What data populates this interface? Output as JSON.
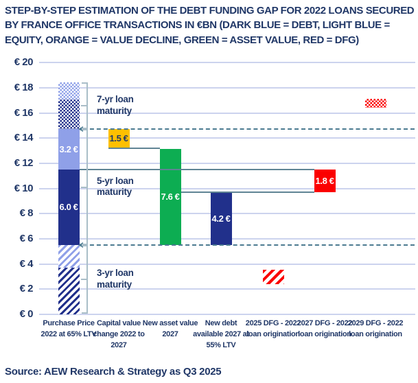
{
  "title": {
    "line1": "STEP-BY-STEP ESTIMATION OF THE DEBT FUNDING GAP FOR 2022 LOANS SECURED",
    "line2": "BY FRANCE OFFICE TRANSACTIONS IN €BN (DARK BLUE = DEBT, LIGHT BLUE =",
    "line3": "EQUITY, ORANGE = VALUE DECLINE, GREEN = ASSET VALUE, RED = DFG)"
  },
  "source": "Source: AEW Research & Strategy as Q3 2025",
  "colors": {
    "text": "#203767",
    "navy": "#21308B",
    "lightblue": "#8FA0E8",
    "green": "#0DAD52",
    "red": "#FB0000",
    "orange": "#FFC000",
    "gridline": "#CCD3EE",
    "dashed_guide": "#4A7A90",
    "connector": "#5F8494",
    "bracket": "#A9BEC8"
  },
  "chart_data": {
    "type": "bar",
    "subtype": "stacked-waterfall",
    "units": "€BN",
    "grid": true,
    "axis": {
      "min": 0,
      "max": 20,
      "step": 2,
      "tick_prefix": "€ "
    },
    "yticks": [
      "€ 0",
      "€ 2",
      "€ 4",
      "€ 6",
      "€ 8",
      "€ 10",
      "€ 12",
      "€ 14",
      "€ 16",
      "€ 18",
      "€ 20"
    ],
    "categories": [
      "Purchase Price 2022 at 65% LTV",
      "Capital value change 2022 to 2027",
      "New asset value 2027",
      "New debt available 2027 at 55% LTV",
      "2025 DFG - 2022 loan origination",
      "2027 DFG - 2022 loan origination",
      "2029 DFG - 2022 loan origination"
    ],
    "bars": [
      {
        "cat": 0,
        "segments": [
          {
            "from": 0,
            "to": 3.7,
            "fill": "navy-hatch"
          },
          {
            "from": 3.7,
            "to": 5.5,
            "fill": "lightblue-hatch"
          },
          {
            "from": 5.5,
            "to": 11.5,
            "fill": "navy",
            "label": "6.0 €"
          },
          {
            "from": 11.5,
            "to": 14.7,
            "fill": "lightblue",
            "label": "3.2 €"
          },
          {
            "from": 14.7,
            "to": 17.05,
            "fill": "navy-dots"
          },
          {
            "from": 17.05,
            "to": 18.45,
            "fill": "lightblue-dots"
          }
        ]
      },
      {
        "cat": 1,
        "segments": [
          {
            "from": 13.2,
            "to": 14.7,
            "fill": "orange",
            "label": "1.5 €",
            "label_dark": true
          }
        ]
      },
      {
        "cat": 2,
        "segments": [
          {
            "from": 5.5,
            "to": 13.15,
            "fill": "green",
            "label": "7.6 €"
          }
        ]
      },
      {
        "cat": 3,
        "segments": [
          {
            "from": 5.5,
            "to": 9.7,
            "fill": "navy",
            "label": "4.2 €"
          }
        ]
      },
      {
        "cat": 4,
        "segments": [
          {
            "from": 2.4,
            "to": 3.55,
            "fill": "red-hatch"
          }
        ]
      },
      {
        "cat": 5,
        "segments": [
          {
            "from": 9.7,
            "to": 11.5,
            "fill": "red",
            "label": "1.8 €"
          }
        ]
      },
      {
        "cat": 6,
        "segments": [
          {
            "from": 16.4,
            "to": 17.1,
            "fill": "red-dots"
          }
        ]
      }
    ],
    "dashed_guides": [
      {
        "y": 14.7
      },
      {
        "y": 5.5
      }
    ],
    "connector_lines": [
      {
        "y": 13.2,
        "x1_cat": 1,
        "x1_side": "left",
        "x2_cat": 2,
        "x2_side": "left"
      },
      {
        "y": 11.5,
        "x1_cat": 0,
        "x1_side": "right",
        "x2_cat": 5,
        "x2_side": "left"
      },
      {
        "y": 9.7,
        "x1_cat": 2,
        "x1_side": "right",
        "x2_cat": 5,
        "x2_side": "left"
      }
    ],
    "brackets": [
      {
        "label": "7-yr loan maturity",
        "from": 14.7,
        "to": 18.45
      },
      {
        "label": "5-yr loan maturity",
        "from": 5.5,
        "to": 14.7
      },
      {
        "label": "3-yr loan maturity",
        "from": 0,
        "to": 5.5
      }
    ]
  }
}
